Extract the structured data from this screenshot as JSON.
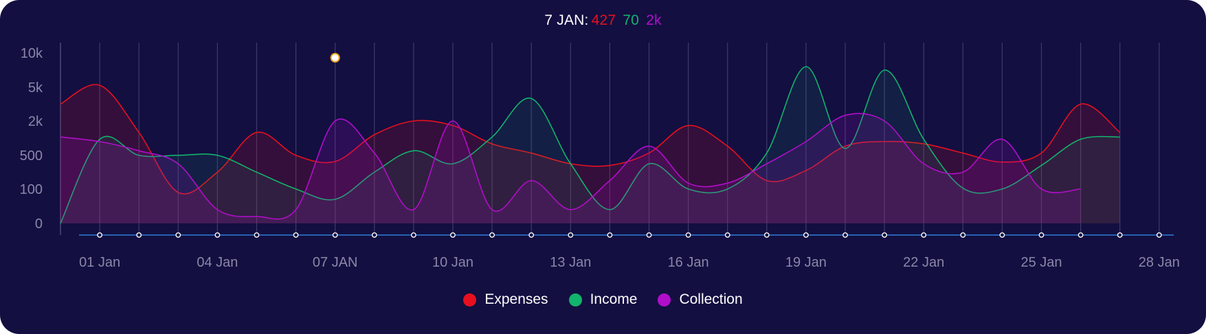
{
  "tooltip": {
    "date": "7 JAN:",
    "expenses": "427",
    "income": "70",
    "collection": "2k"
  },
  "colors": {
    "background": "#130f41",
    "expenses": "#e8101e",
    "income": "#12b36b",
    "collection": "#b10ec9",
    "grid": "#3e3a6a",
    "axis_text": "#8a87a8",
    "baseline": "#2f7fd8"
  },
  "chart_data": {
    "type": "area",
    "y_scale": "nonlinear",
    "y_ticks": [
      "0",
      "100",
      "500",
      "2k",
      "5k",
      "10k"
    ],
    "y_tick_values": [
      0,
      100,
      500,
      2000,
      5000,
      10000
    ],
    "x_labels": [
      "01 Jan",
      "04 Jan",
      "07 JAN",
      "10 Jan",
      "13 Jan",
      "16 Jan",
      "19 Jan",
      "22 Jan",
      "25 Jan",
      "28 Jan"
    ],
    "x_label_days": [
      1,
      4,
      7,
      10,
      13,
      16,
      19,
      22,
      25,
      28
    ],
    "highlighted_day": 7,
    "legend": [
      "Expenses",
      "Income",
      "Collection"
    ],
    "series": [
      {
        "name": "Expenses",
        "x": [
          0,
          1,
          2,
          3,
          4,
          5,
          6,
          7,
          8,
          9,
          10,
          11,
          12,
          13,
          14,
          15,
          16,
          17,
          18,
          19,
          20,
          21,
          22,
          23,
          24,
          25,
          26,
          27
        ],
        "values": [
          3500,
          5300,
          1500,
          90,
          300,
          1500,
          500,
          427,
          1400,
          2000,
          1800,
          1000,
          600,
          400,
          380,
          600,
          1800,
          900,
          200,
          320,
          900,
          1100,
          1000,
          600,
          420,
          600,
          3500,
          1500
        ]
      },
      {
        "name": "Income",
        "x": [
          0,
          1,
          2,
          3,
          4,
          5,
          6,
          7,
          8,
          9,
          10,
          11,
          12,
          13,
          14,
          15,
          16,
          17,
          18,
          19,
          20,
          21,
          22,
          23,
          24,
          25,
          26,
          27
        ],
        "values": [
          0,
          1200,
          500,
          500,
          500,
          300,
          100,
          70,
          300,
          700,
          400,
          1300,
          4000,
          400,
          40,
          400,
          100,
          100,
          600,
          8000,
          800,
          7500,
          1200,
          110,
          100,
          380,
          1200,
          1300
        ]
      },
      {
        "name": "Collection",
        "x": [
          0,
          1,
          2,
          3,
          4,
          5,
          6,
          7,
          8,
          9,
          10,
          11,
          12,
          13,
          14,
          15,
          16,
          17,
          18,
          19,
          20,
          21,
          22,
          23,
          24,
          25,
          26
        ],
        "values": [
          1300,
          1100,
          700,
          400,
          40,
          20,
          40,
          2000,
          600,
          40,
          2000,
          40,
          200,
          40,
          200,
          900,
          170,
          170,
          400,
          1100,
          2500,
          2000,
          400,
          300,
          1200,
          100,
          100
        ]
      }
    ],
    "legend_position": "bottom-center",
    "grid": "vertical"
  }
}
